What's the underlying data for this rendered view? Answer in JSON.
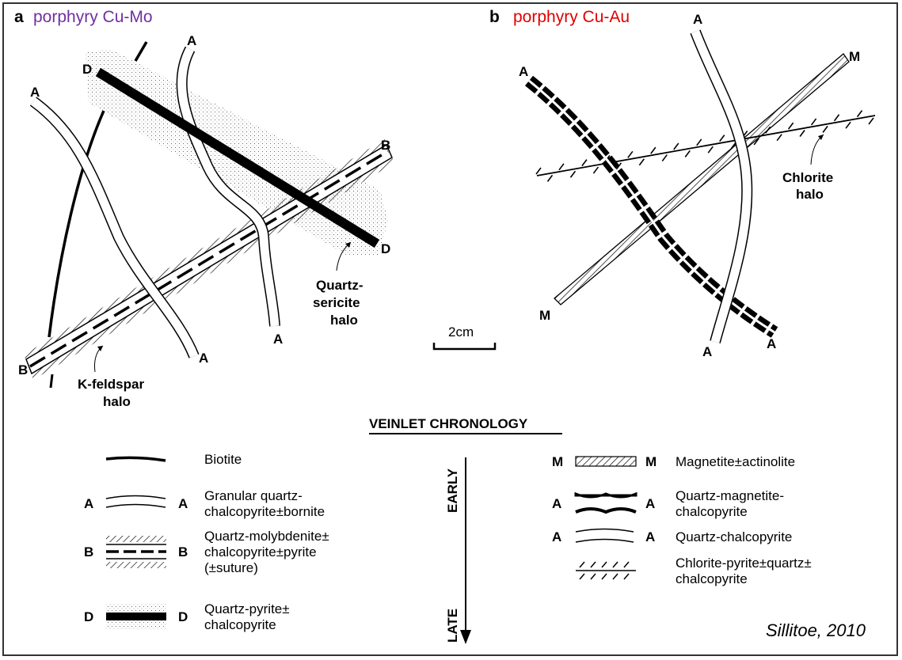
{
  "panel_a": {
    "letter": "a",
    "title": "porphyry Cu-Mo",
    "title_color": "#7030a0",
    "labels": {
      "A": "A",
      "B": "B",
      "D": "D"
    },
    "halos": {
      "k_feldspar_1": "K-feldspar",
      "k_feldspar_2": "halo",
      "quartz_sericite_1": "Quartz-",
      "quartz_sericite_2": "sericite",
      "quartz_sericite_3": "halo"
    }
  },
  "panel_b": {
    "letter": "b",
    "title": "porphyry Cu-Au",
    "title_color": "#e00000",
    "labels": {
      "A": "A",
      "M": "M"
    },
    "halos": {
      "chlorite_1": "Chlorite",
      "chlorite_2": "halo"
    }
  },
  "scale": {
    "label": "2cm"
  },
  "legend": {
    "heading": "VEINLET CHRONOLOGY",
    "early": "EARLY",
    "late": "LATE",
    "left": [
      {
        "l": "",
        "r": "",
        "lines": [
          "Biotite"
        ]
      },
      {
        "l": "A",
        "r": "A",
        "lines": [
          "Granular quartz-",
          "chalcopyrite±bornite"
        ]
      },
      {
        "l": "B",
        "r": "B",
        "lines": [
          "Quartz-molybdenite±",
          "chalcopyrite±pyrite",
          "(±suture)"
        ]
      },
      {
        "l": "D",
        "r": "D",
        "lines": [
          "Quartz-pyrite±",
          "chalcopyrite"
        ]
      }
    ],
    "right": [
      {
        "l": "M",
        "r": "M",
        "lines": [
          "Magnetite±actinolite"
        ]
      },
      {
        "l": "A",
        "r": "A",
        "lines": [
          "Quartz-magnetite-",
          "chalcopyrite"
        ]
      },
      {
        "l": "A",
        "r": "A",
        "lines": [
          "Quartz-chalcopyrite"
        ]
      },
      {
        "l": "",
        "r": "",
        "lines": [
          "Chlorite-pyrite±quartz±",
          "chalcopyrite"
        ]
      }
    ]
  },
  "credit": "Sillitoe, 2010"
}
